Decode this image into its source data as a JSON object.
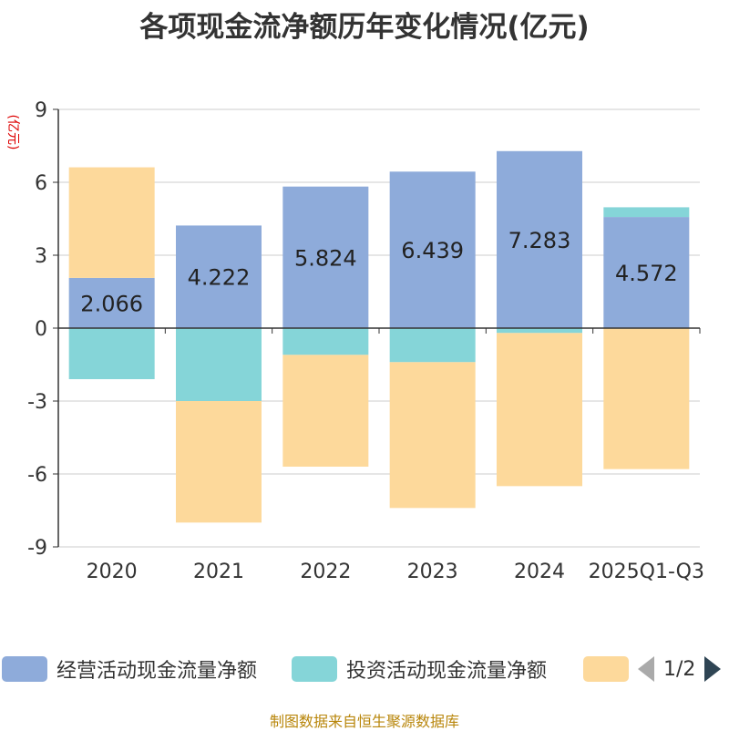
{
  "title": "各项现金流净额历年变化情况(亿元)",
  "source_note": "制图数据来自恒生聚源数据库",
  "pager": {
    "text": "1/2"
  },
  "colors": {
    "operating": "#8eabda",
    "investing": "#85d5d8",
    "financing": "#fdd99b"
  },
  "chart_data": {
    "type": "bar",
    "stacked": true,
    "title": "各项现金流净额历年变化情况(亿元)",
    "ylabel": "(亿元)",
    "ylim": [
      -9,
      9
    ],
    "yticks": [
      9,
      6,
      3,
      0,
      -3,
      -6,
      -9
    ],
    "categories": [
      "2020",
      "2021",
      "2022",
      "2023",
      "2024",
      "2025Q1-Q3"
    ],
    "series": [
      {
        "name": "经营活动现金流量净额",
        "color": "#8eabda",
        "values": [
          2.066,
          4.222,
          5.824,
          6.439,
          7.283,
          4.572
        ],
        "labels": [
          "2.066",
          "4.222",
          "5.824",
          "6.439",
          "7.283",
          "4.572"
        ]
      },
      {
        "name": "投资活动现金流量净额",
        "color": "#85d5d8",
        "values": [
          -2.1,
          -3.0,
          -1.1,
          -1.4,
          -0.2,
          0.4
        ]
      },
      {
        "name": "",
        "color": "#fdd99b",
        "values": [
          4.55,
          -5.0,
          -4.6,
          -6.0,
          -6.3,
          -5.8
        ]
      }
    ],
    "legend": [
      "经营活动现金流量净额",
      "投资活动现金流量净额",
      ""
    ]
  }
}
